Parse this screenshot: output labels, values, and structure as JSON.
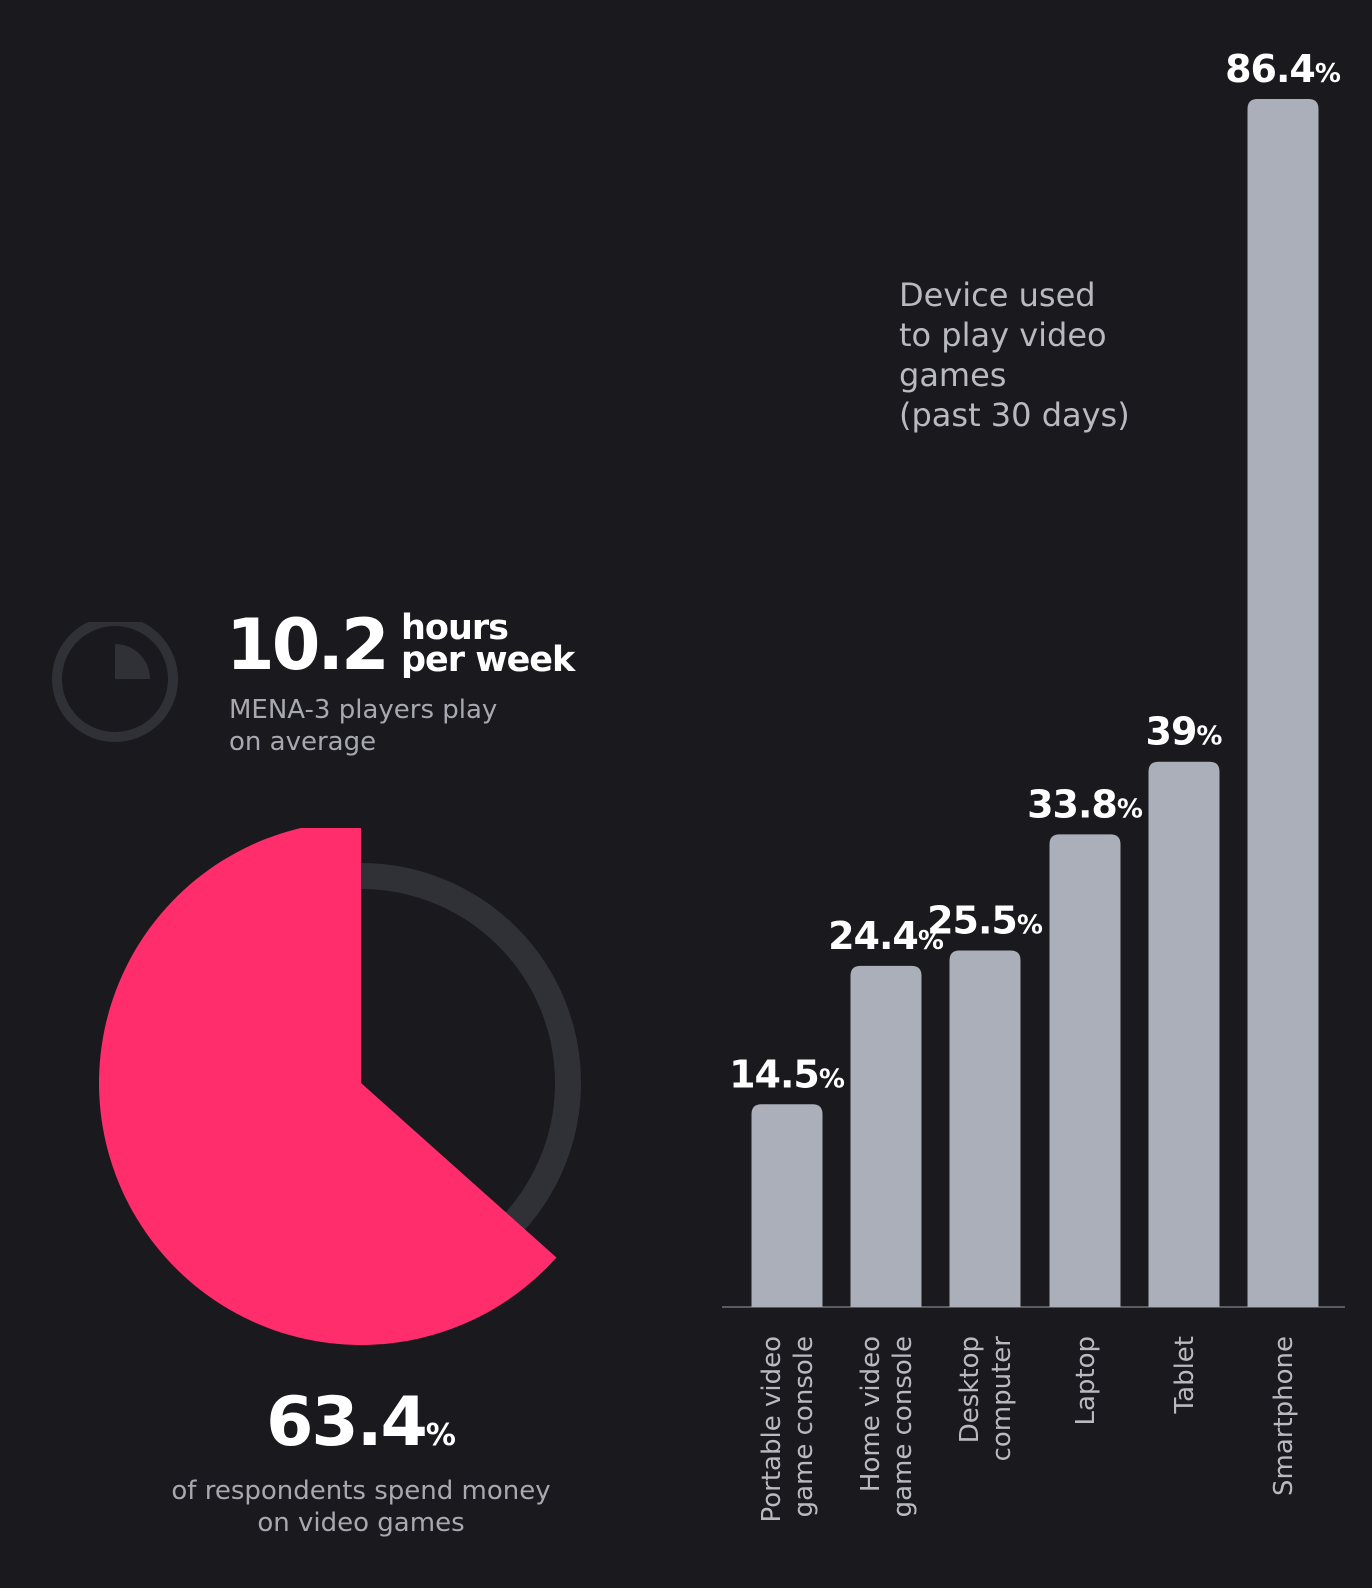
{
  "hours_stat": {
    "value": "10.2",
    "unit_line1": "hours",
    "unit_line2": "per week",
    "desc_line1": "MENA-3 players play",
    "desc_line2": "on average",
    "clock_fraction": 0.25
  },
  "spend_stat": {
    "value": "63.4",
    "pct_sign": "%",
    "caption_line1": "of respondents spend money",
    "caption_line2": "on video games",
    "fraction": 0.634
  },
  "colors": {
    "background": "#1a191e",
    "pie_fill": "#ff2d6b",
    "track": "#303037",
    "bar": "#abafba",
    "text_muted": "#a8a8b0"
  },
  "chart_data": {
    "type": "bar",
    "title_lines": [
      "Device used",
      "to play video",
      "games",
      "(past 30 days)"
    ],
    "categories": [
      [
        "Portable video",
        "game console"
      ],
      [
        "Home video",
        "game console"
      ],
      [
        "Desktop",
        "computer"
      ],
      [
        "Laptop"
      ],
      [
        "Tablet"
      ],
      [
        "Smartphone"
      ]
    ],
    "values": [
      14.5,
      24.4,
      25.5,
      33.8,
      39,
      86.4
    ],
    "value_labels": [
      "14.5",
      "24.4",
      "25.5",
      "33.8",
      "39",
      "86.4"
    ],
    "unit": "%",
    "ylim": [
      0,
      86.4
    ],
    "grid": false,
    "legend": "none"
  }
}
